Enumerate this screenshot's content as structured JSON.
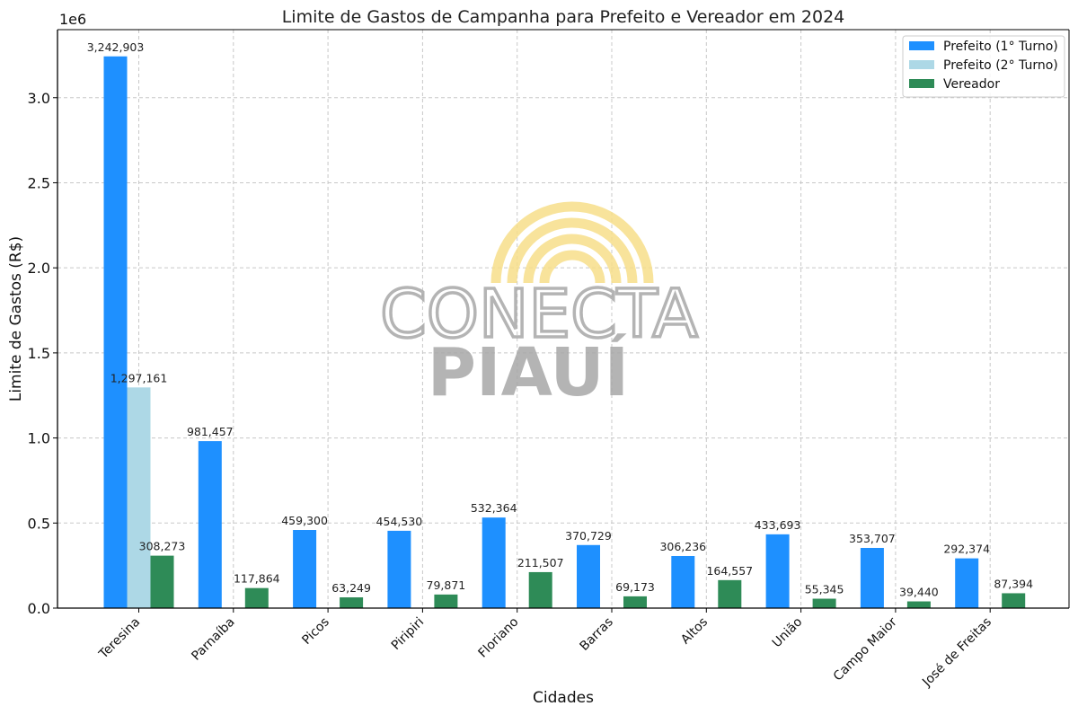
{
  "chart_data": {
    "type": "bar",
    "title": "Limite de Gastos de Campanha para Prefeito e Vereador em 2024",
    "xlabel": "Cidades",
    "ylabel": "Limite de Gastos (R$)",
    "y_offset_label": "1e6",
    "ylim": [
      0,
      3400000
    ],
    "yticks": [
      0,
      500000,
      1000000,
      1500000,
      2000000,
      2500000,
      3000000
    ],
    "ytick_labels": [
      "0.0",
      "0.5",
      "1.0",
      "1.5",
      "2.0",
      "2.5",
      "3.0"
    ],
    "grid": true,
    "legend_position": "top-right",
    "categories": [
      "Teresina",
      "Parnaíba",
      "Picos",
      "Piripiri",
      "Floriano",
      "Barras",
      "Altos",
      "União",
      "Campo Maior",
      "José de Freitas"
    ],
    "series": [
      {
        "name": "Prefeito (1° Turno)",
        "color": "#1e90ff",
        "values": [
          3242903,
          981457,
          459300,
          454530,
          532364,
          370729,
          306236,
          433693,
          353707,
          292374
        ],
        "labels": [
          "3,242,903",
          "981,457",
          "459,300",
          "454,530",
          "532,364",
          "370,729",
          "306,236",
          "433,693",
          "353,707",
          "292,374"
        ]
      },
      {
        "name": "Prefeito (2° Turno)",
        "color": "#add8e6",
        "values": [
          1297161,
          null,
          null,
          null,
          null,
          null,
          null,
          null,
          null,
          null
        ],
        "labels": [
          "1,297,161",
          null,
          null,
          null,
          null,
          null,
          null,
          null,
          null,
          null
        ]
      },
      {
        "name": "Vereador",
        "color": "#2e8b57",
        "values": [
          308273,
          117864,
          63249,
          79871,
          211507,
          69173,
          164557,
          55345,
          39440,
          87394
        ],
        "labels": [
          "308,273",
          "117,864",
          "63,249",
          "79,871",
          "211,507",
          "69,173",
          "164,557",
          "55,345",
          "39,440",
          "87,394"
        ]
      }
    ]
  },
  "watermark": {
    "line1": "CONECTA",
    "line2": "PIAUÍ",
    "arc_color": "#f7df8a",
    "text_color": "#9e9e9e"
  }
}
